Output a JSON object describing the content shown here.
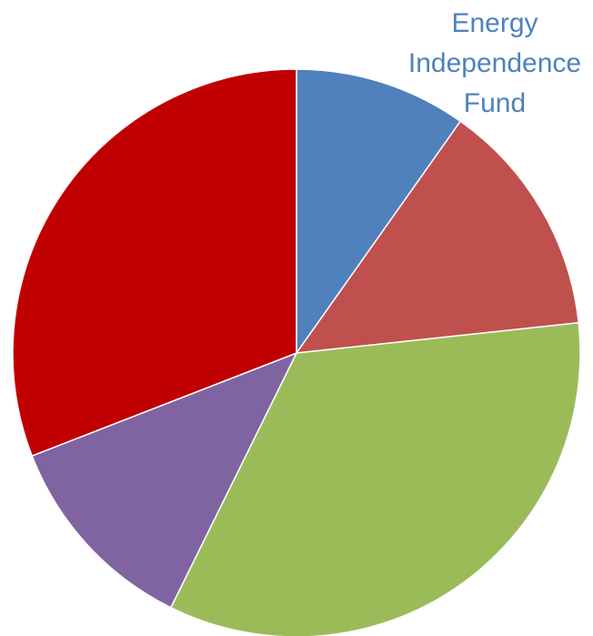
{
  "chart_data": {
    "type": "pie",
    "title": "",
    "start_angle_deg": 0,
    "direction": "clockwise",
    "slices": [
      {
        "label": "Energy Independence Fund",
        "label_lines": [
          "Energy",
          "Independence",
          "Fund"
        ],
        "value": 9.8,
        "color": "#4F81BD",
        "show_label": true
      },
      {
        "label": "",
        "value": 13.5,
        "color": "#C0504D",
        "show_label": false
      },
      {
        "label": "",
        "value": 34.0,
        "color": "#9BBB59",
        "show_label": false
      },
      {
        "label": "",
        "value": 11.8,
        "color": "#8064A2",
        "show_label": false
      },
      {
        "label": "",
        "value": 30.9,
        "color": "#C00000",
        "show_label": false
      }
    ]
  }
}
